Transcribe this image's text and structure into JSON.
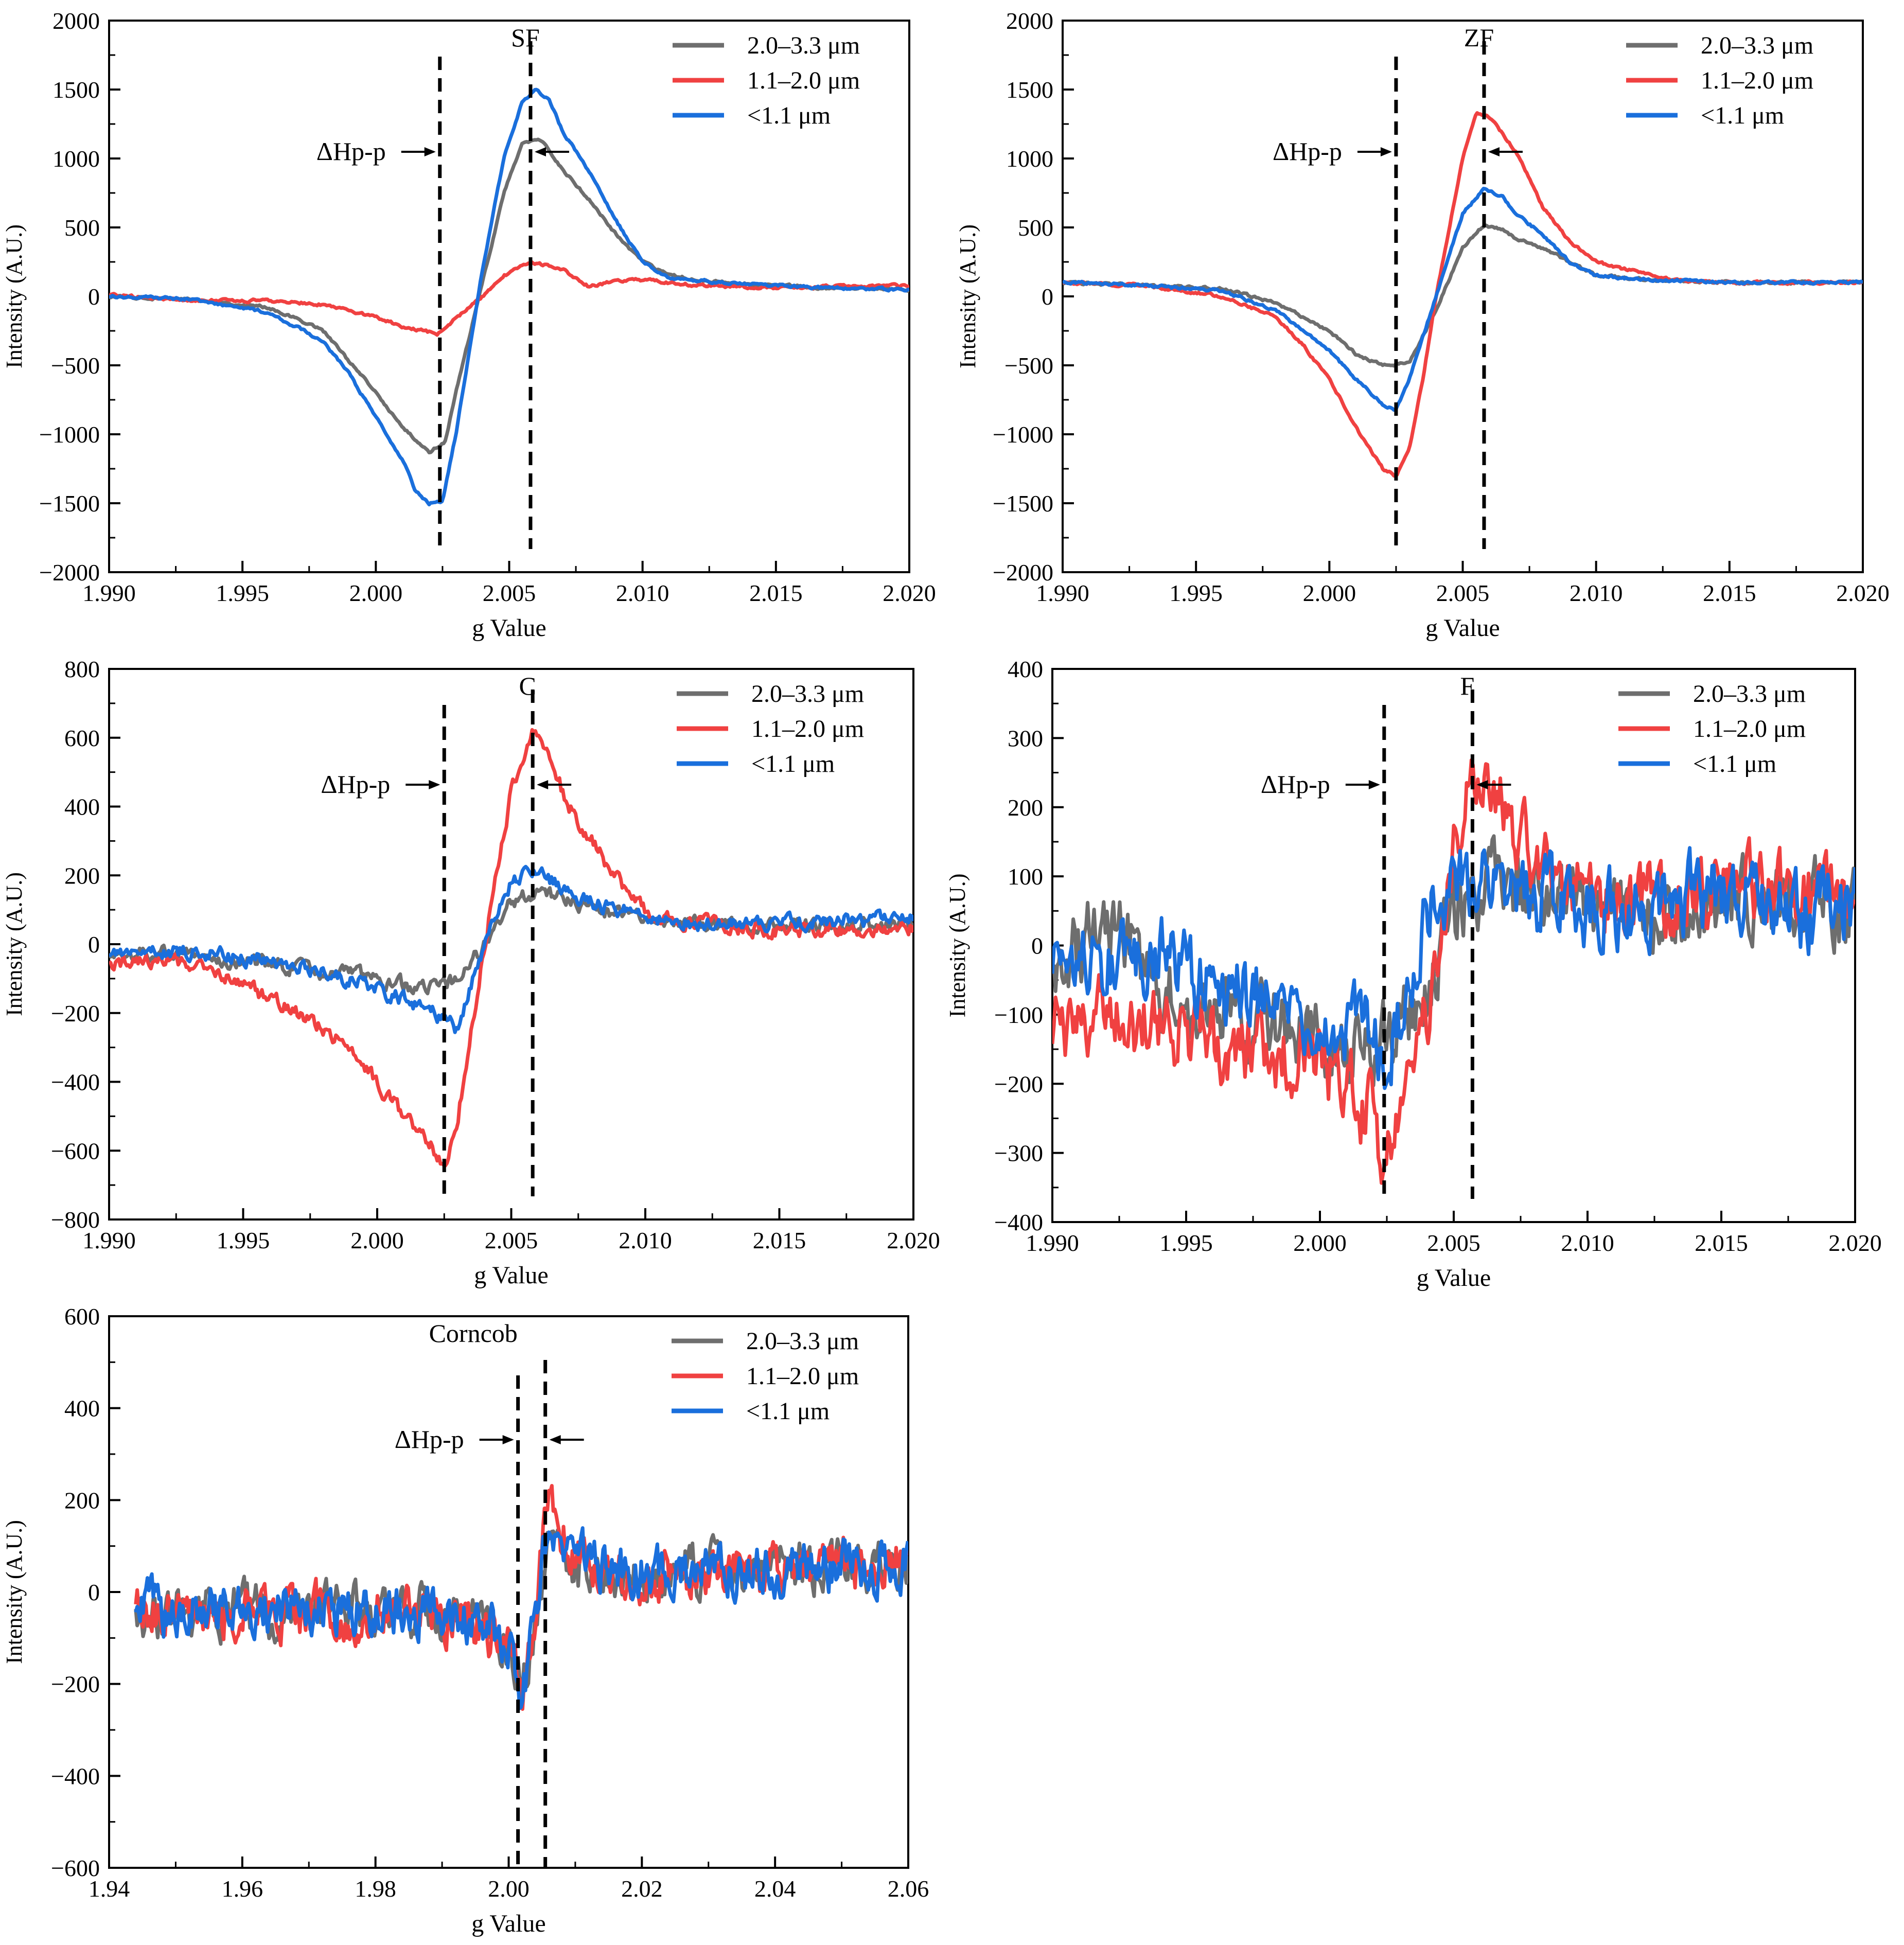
{
  "chart_data": [
    {
      "type": "line",
      "title": "SF",
      "xlabel": "g Value",
      "ylabel": "Intensity (A.U.)",
      "xlim": [
        1.99,
        2.02
      ],
      "ylim": [
        -2000,
        2000
      ],
      "xticks": [
        "1.990",
        "1.995",
        "2.000",
        "2.005",
        "2.010",
        "2.015",
        "2.020"
      ],
      "yticks": [
        "−2000",
        "−1500",
        "−1000",
        "−500",
        "0",
        "500",
        "1000",
        "1500",
        "2000"
      ],
      "annotation": "ΔHp-p",
      "dashed_lines_x": [
        2.0024,
        2.0058
      ],
      "legend": [
        "2.0–3.3  μm",
        "1.1–2.0  μm",
        "<1.1 μm"
      ],
      "series": [
        {
          "name": "2.0–3.3  μm",
          "color": "#6e6e6e",
          "x": [
            1.99,
            1.993,
            1.996,
            1.998,
            1.999,
            2.0,
            2.001,
            2.002,
            2.0026,
            2.003,
            2.004,
            2.0048,
            2.0055,
            2.0062,
            2.007,
            2.008,
            2.009,
            2.01,
            2.011,
            2.013,
            2.015,
            2.017,
            2.02
          ],
          "values": [
            0,
            -20,
            -80,
            -240,
            -470,
            -700,
            -950,
            -1130,
            -1050,
            -700,
            100,
            750,
            1120,
            1130,
            920,
            700,
            450,
            250,
            150,
            100,
            80,
            60,
            50
          ]
        },
        {
          "name": "1.1–2.0  μm",
          "color": "#f04141",
          "x": [
            1.99,
            1.993,
            1.996,
            1.998,
            2.0,
            2.001,
            2.0023,
            2.003,
            2.004,
            2.0048,
            2.0058,
            2.0065,
            2.007,
            2.008,
            2.009,
            2.01,
            2.012,
            2.015,
            2.017,
            2.02
          ],
          "values": [
            10,
            -30,
            -30,
            -60,
            -150,
            -220,
            -270,
            -160,
            0,
            150,
            250,
            220,
            200,
            70,
            110,
            120,
            80,
            60,
            70,
            80
          ]
        },
        {
          "name": "<1.1 μm",
          "color": "#1a6fdc",
          "x": [
            1.99,
            1.993,
            1.996,
            1.998,
            1.999,
            2.0,
            2.001,
            2.0015,
            2.002,
            2.0025,
            2.003,
            2.004,
            2.0048,
            2.0055,
            2.006,
            2.0065,
            2.007,
            2.008,
            2.009,
            2.01,
            2.011,
            2.013,
            2.015,
            2.017,
            2.02
          ],
          "values": [
            0,
            -20,
            -120,
            -320,
            -560,
            -880,
            -1180,
            -1420,
            -1500,
            -1480,
            -1000,
            200,
            1000,
            1420,
            1500,
            1420,
            1200,
            900,
            550,
            250,
            130,
            100,
            80,
            60,
            50
          ]
        }
      ]
    },
    {
      "type": "line",
      "title": "ZF",
      "xlabel": "g Value",
      "ylabel": "Intensity (A.U.)",
      "xlim": [
        1.99,
        2.02
      ],
      "ylim": [
        -2000,
        2000
      ],
      "xticks": [
        "1.990",
        "1.995",
        "2.000",
        "2.005",
        "2.010",
        "2.015",
        "2.020"
      ],
      "yticks": [
        "−2000",
        "−1500",
        "−1000",
        "−500",
        "0",
        "500",
        "1000",
        "1500",
        "2000"
      ],
      "annotation": "ΔHp-p",
      "dashed_lines_x": [
        2.0025,
        2.0058
      ],
      "legend": [
        "2.0–3.3  μm",
        "1.1–2.0  μm",
        "<1.1 μm"
      ],
      "series": [
        {
          "name": "2.0–3.3  μm",
          "color": "#6e6e6e",
          "x": [
            1.99,
            1.993,
            1.996,
            1.998,
            2.0,
            2.001,
            2.002,
            2.003,
            2.004,
            2.005,
            2.0058,
            2.0065,
            2.007,
            2.008,
            2.009,
            2.01,
            2.012,
            2.015,
            2.02
          ],
          "values": [
            100,
            80,
            60,
            -50,
            -250,
            -420,
            -500,
            -480,
            -100,
            350,
            520,
            480,
            420,
            350,
            250,
            150,
            120,
            100,
            100
          ]
        },
        {
          "name": "1.1–2.0  μm",
          "color": "#f04141",
          "x": [
            1.99,
            1.993,
            1.996,
            1.998,
            1.999,
            2.0,
            2.001,
            2.002,
            2.0025,
            2.003,
            2.0035,
            2.004,
            2.005,
            2.0055,
            2.006,
            2.007,
            2.008,
            2.009,
            2.01,
            2.011,
            2.013,
            2.015,
            2.02
          ],
          "values": [
            100,
            80,
            0,
            -150,
            -350,
            -600,
            -950,
            -1250,
            -1300,
            -1100,
            -600,
            0,
            1000,
            1330,
            1300,
            1050,
            650,
            400,
            250,
            200,
            120,
            100,
            100
          ]
        },
        {
          "name": "<1.1 μm",
          "color": "#1a6fdc",
          "x": [
            1.99,
            1.993,
            1.996,
            1.998,
            2.0,
            2.001,
            2.002,
            2.0025,
            2.003,
            2.004,
            2.005,
            2.0058,
            2.0065,
            2.007,
            2.008,
            2.009,
            2.01,
            2.012,
            2.015,
            2.02
          ],
          "values": [
            100,
            80,
            40,
            -100,
            -400,
            -600,
            -780,
            -820,
            -600,
            0,
            600,
            780,
            720,
            600,
            450,
            250,
            150,
            120,
            100,
            100
          ]
        }
      ]
    },
    {
      "type": "line",
      "title": "C",
      "xlabel": "g Value",
      "ylabel": "Intensity (A.U.)",
      "xlim": [
        1.99,
        2.02
      ],
      "ylim": [
        -800,
        800
      ],
      "xticks": [
        "1.990",
        "1.995",
        "2.000",
        "2.005",
        "2.010",
        "2.015",
        "2.020"
      ],
      "yticks": [
        "−800",
        "−600",
        "−400",
        "−200",
        "0",
        "200",
        "400",
        "600",
        "800"
      ],
      "annotation": "ΔHp-p",
      "dashed_lines_x": [
        2.0025,
        2.0058
      ],
      "legend": [
        "2.0–3.3  μm",
        "1.1–2.0  μm",
        "<1.1 μm"
      ],
      "series": [
        {
          "name": "2.0–3.3  μm",
          "color": "#6e6e6e",
          "x": [
            1.99,
            1.993,
            1.996,
            1.998,
            2.0,
            2.001,
            2.002,
            2.003,
            2.004,
            2.005,
            2.006,
            2.007,
            2.008,
            2.01,
            2.012,
            2.015,
            2.02
          ],
          "values": [
            -30,
            -30,
            -60,
            -80,
            -100,
            -120,
            -130,
            -110,
            0,
            120,
            160,
            130,
            100,
            80,
            60,
            50,
            60
          ]
        },
        {
          "name": "1.1–2.0  μm",
          "color": "#f04141",
          "x": [
            1.99,
            1.993,
            1.995,
            1.997,
            1.999,
            2.0,
            2.001,
            2.002,
            2.0025,
            2.003,
            2.004,
            2.005,
            2.0058,
            2.0065,
            2.007,
            2.008,
            2.009,
            2.01,
            2.012,
            2.015,
            2.02
          ],
          "values": [
            -50,
            -50,
            -120,
            -200,
            -300,
            -400,
            -500,
            -580,
            -660,
            -500,
            0,
            450,
            620,
            550,
            420,
            300,
            180,
            100,
            60,
            40,
            50
          ]
        },
        {
          "name": "<1.1 μm",
          "color": "#1a6fdc",
          "x": [
            1.99,
            1.993,
            1.996,
            1.998,
            2.0,
            2.001,
            2.002,
            2.003,
            2.004,
            2.005,
            2.006,
            2.007,
            2.008,
            2.01,
            2.012,
            2.015,
            2.02
          ],
          "values": [
            -30,
            -20,
            -50,
            -80,
            -130,
            -160,
            -190,
            -250,
            0,
            180,
            220,
            150,
            120,
            80,
            60,
            60,
            80
          ]
        }
      ]
    },
    {
      "type": "line",
      "title": "F",
      "xlabel": "g Value",
      "ylabel": "Intensity (A.U.)",
      "xlim": [
        1.99,
        2.02
      ],
      "ylim": [
        -400,
        400
      ],
      "xticks": [
        "1.990",
        "1.995",
        "2.000",
        "2.005",
        "2.010",
        "2.015",
        "2.020"
      ],
      "yticks": [
        "−400",
        "−300",
        "−200",
        "−100",
        "0",
        "100",
        "200",
        "300",
        "400"
      ],
      "annotation": "ΔHp-p",
      "dashed_lines_x": [
        2.0024,
        2.0057
      ],
      "legend": [
        "2.0–3.3  μm",
        "1.1–2.0  μm",
        "<1.1 μm"
      ],
      "series": [
        {
          "name": "2.0–3.3  μm",
          "color": "#6e6e6e",
          "x": [
            1.99,
            1.992,
            1.994,
            1.996,
            1.998,
            2.0,
            2.001,
            2.002,
            2.003,
            2.004,
            2.005,
            2.006,
            2.008,
            2.01,
            2.012,
            2.014,
            2.016,
            2.018,
            2.02
          ],
          "values": [
            -50,
            40,
            -60,
            -90,
            -120,
            -130,
            -140,
            -150,
            -120,
            -60,
            60,
            90,
            70,
            60,
            50,
            60,
            70,
            60,
            60
          ]
        },
        {
          "name": "1.1–2.0  μm",
          "color": "#f04141",
          "x": [
            1.99,
            1.992,
            1.994,
            1.996,
            1.998,
            2.0,
            2.001,
            2.002,
            2.0024,
            2.003,
            2.004,
            2.005,
            2.0055,
            2.006,
            2.007,
            2.008,
            2.01,
            2.012,
            2.014,
            2.016,
            2.018,
            2.02
          ],
          "values": [
            -120,
            -100,
            -120,
            -140,
            -150,
            -170,
            -200,
            -250,
            -320,
            -280,
            -100,
            150,
            230,
            200,
            200,
            120,
            80,
            60,
            70,
            80,
            70,
            80
          ]
        },
        {
          "name": "<1.1 μm",
          "color": "#1a6fdc",
          "x": [
            1.99,
            1.992,
            1.994,
            1.996,
            1.998,
            2.0,
            2.001,
            2.002,
            2.0024,
            2.003,
            2.004,
            2.005,
            2.006,
            2.007,
            2.008,
            2.01,
            2.012,
            2.014,
            2.016,
            2.018,
            2.02
          ],
          "values": [
            -40,
            -20,
            0,
            -60,
            -80,
            -100,
            -110,
            -130,
            -160,
            -100,
            50,
            100,
            90,
            80,
            70,
            60,
            60,
            70,
            60,
            40,
            80
          ]
        }
      ]
    },
    {
      "type": "line",
      "title": "Corncob",
      "xlabel": "g Value",
      "ylabel": "Intensity (A.U.)",
      "xlim": [
        1.94,
        2.06
      ],
      "ylim": [
        -600,
        600
      ],
      "xticks": [
        "1.94",
        "1.96",
        "1.98",
        "2.00",
        "2.02",
        "2.04",
        "2.06"
      ],
      "yticks": [
        "−600",
        "−400",
        "−200",
        "0",
        "200",
        "400",
        "600"
      ],
      "annotation": "ΔHp-p",
      "dashed_lines_x": [
        2.0014,
        2.0055
      ],
      "legend": [
        "2.0–3.3  μm",
        "1.1–2.0  μm",
        "<1.1 μm"
      ],
      "series": [
        {
          "name": "2.0–3.3  μm",
          "color": "#6e6e6e",
          "x": [
            1.944,
            1.96,
            1.98,
            1.995,
            2.0,
            2.002,
            2.004,
            2.006,
            2.01,
            2.02,
            2.03,
            2.04,
            2.05,
            2.06
          ],
          "values": [
            -40,
            -40,
            -40,
            -50,
            -100,
            -220,
            -60,
            100,
            60,
            40,
            50,
            50,
            60,
            60
          ]
        },
        {
          "name": "1.1–2.0  μm",
          "color": "#f04141",
          "x": [
            1.944,
            1.96,
            1.98,
            1.995,
            2.0,
            2.002,
            2.004,
            2.0055,
            2.01,
            2.02,
            2.03,
            2.04,
            2.05,
            2.06
          ],
          "values": [
            -40,
            -50,
            -40,
            -60,
            -120,
            -260,
            -80,
            200,
            80,
            40,
            50,
            50,
            60,
            60
          ]
        },
        {
          "name": "<1.1 μm",
          "color": "#1a6fdc",
          "x": [
            1.944,
            1.96,
            1.98,
            1.995,
            2.0,
            2.002,
            2.004,
            2.006,
            2.01,
            2.02,
            2.03,
            2.04,
            2.05,
            2.06
          ],
          "values": [
            -40,
            -40,
            -40,
            -50,
            -110,
            -250,
            -60,
            140,
            70,
            40,
            50,
            50,
            60,
            60
          ]
        }
      ]
    }
  ]
}
